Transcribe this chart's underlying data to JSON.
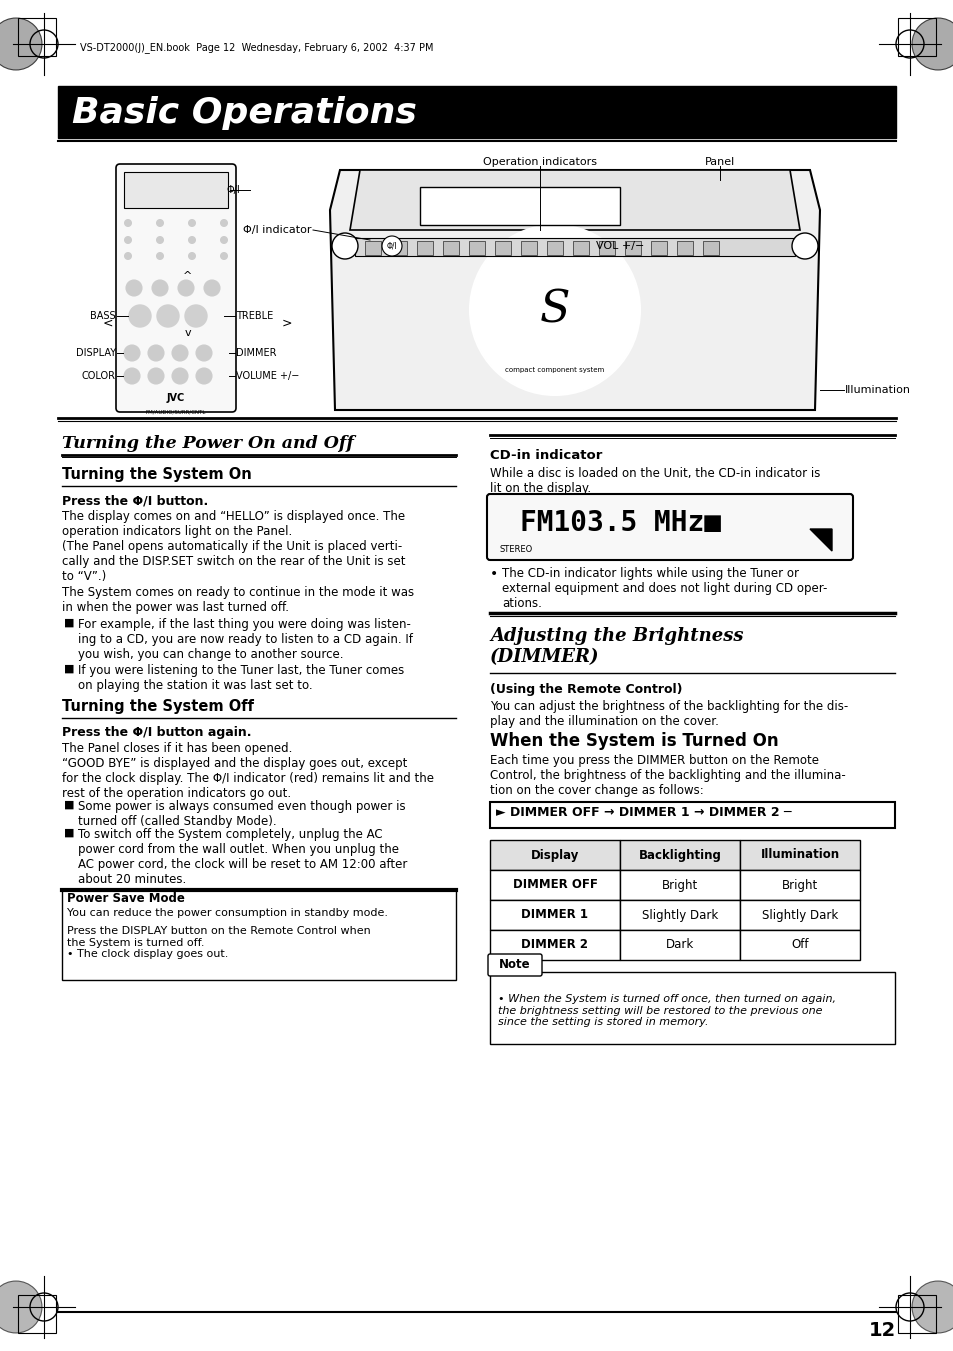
{
  "page_bg": "#ffffff",
  "header_text": "VS-DT2000(J)_EN.book  Page 12  Wednesday, February 6, 2002  4:37 PM",
  "title_bar_bg": "#000000",
  "title_text": "Basic Operations",
  "title_color": "#ffffff",
  "section1_title": "Turning the Power On and Off",
  "section1_sub1": "Turning the System On",
  "section1_sub1_head": "Press the Φ/I button.",
  "section1_sub1_body1": "The display comes on and “HELLO” is displayed once. The\noperation indicators light on the Panel.\n(The Panel opens automatically if the Unit is placed verti-\ncally and the DISP.SET switch on the rear of the Unit is set\nto “V”.)",
  "section1_sub1_body2": "The System comes on ready to continue in the mode it was\nin when the power was last turned off.",
  "section1_bullet1": "For example, if the last thing you were doing was listen-\ning to a CD, you are now ready to listen to a CD again. If\nyou wish, you can change to another source.",
  "section1_bullet2": "If you were listening to the Tuner last, the Tuner comes\non playing the station it was last set to.",
  "section1_sub2": "Turning the System Off",
  "section1_sub2_head": "Press the Φ/I button again.",
  "section1_sub2_body1": "The Panel closes if it has been opened.\n“GOOD BYE” is displayed and the display goes out, except\nfor the clock display. The Φ/I indicator (red) remains lit and the\nrest of the operation indicators go out.",
  "section1_bullet3": "Some power is always consumed even though power is\nturned off (called Standby Mode).",
  "section1_bullet4": "To switch off the System completely, unplug the AC\npower cord from the wall outlet. When you unplug the\nAC power cord, the clock will be reset to AM 12:00 after\nabout 20 minutes.",
  "power_save_title": "Power Save Mode",
  "power_save_body1": "You can reduce the power consumption in standby mode.",
  "power_save_body2": "Press the DISPLAY button on the Remote Control when\nthe System is turned off.\n• The clock display goes out.",
  "cd_indicator_title": "CD-in indicator",
  "cd_indicator_body": "While a disc is loaded on the Unit, the CD-in indicator is\nlit on the display.",
  "cd_bullet": "The CD-in indicator lights while using the Tuner or\nexternal equipment and does not light during CD oper-\nations.",
  "section2_title": "Adjusting the Brightness\n(DIMMER)",
  "section2_sub": "(Using the Remote Control)",
  "section2_body": "You can adjust the brightness of the backlighting for the dis-\nplay and the illumination on the cover.",
  "section2_sub2": "When the System is Turned On",
  "section2_body2": "Each time you press the DIMMER button on the Remote\nControl, the brightness of the backlighting and the illumina-\ntion on the cover change as follows:",
  "dimmer_text": "► DIMMER OFF → DIMMER 1 → DIMMER 2 ─",
  "table_headers": [
    "Display",
    "Backlighting",
    "Illumination"
  ],
  "table_rows": [
    [
      "DIMMER OFF",
      "Bright",
      "Bright"
    ],
    [
      "DIMMER 1",
      "Slightly Dark",
      "Slightly Dark"
    ],
    [
      "DIMMER 2",
      "Dark",
      "Off"
    ]
  ],
  "note_title": "Note",
  "note_body": "• When the System is turned off once, then turned on again,\nthe brightness setting will be restored to the previous one\nsince the setting is stored in memory.",
  "page_number": "12",
  "fm_display_text": "FM103.5 MHz■",
  "fm_stereo": "STEREO",
  "label_op_ind": "Operation indicators",
  "label_panel": "Panel",
  "label_phi_ind": "Φ/I indicator",
  "label_phi": "Φ/I",
  "label_vol": "VOL +/−",
  "label_illum": "Illumination",
  "label_bass": "BASS",
  "label_treble": "TREBLE",
  "label_display": "DISPLAY",
  "label_dimmer": "DIMMER",
  "label_color": "COLOR",
  "label_volume": "VOLUME +/−"
}
